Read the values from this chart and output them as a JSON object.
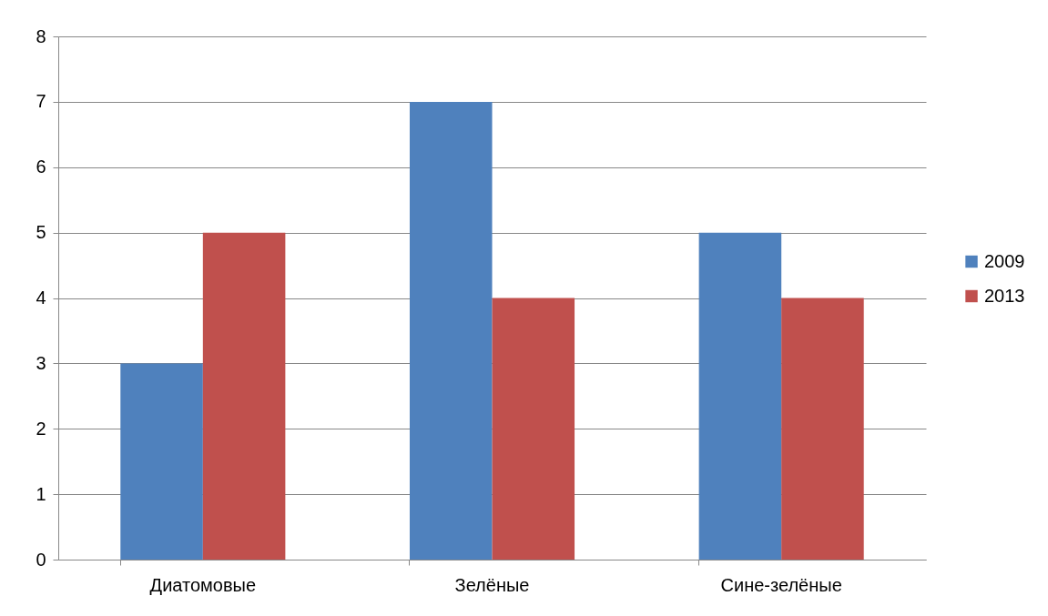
{
  "chart_data": {
    "type": "bar",
    "categories": [
      "Диатомовые",
      "Зелёные",
      "Сине-зелёные"
    ],
    "series": [
      {
        "name": "2009",
        "color": "#4f81bd",
        "values": [
          3,
          7,
          5
        ]
      },
      {
        "name": "2013",
        "color": "#c0504d",
        "values": [
          5,
          4,
          4
        ]
      }
    ],
    "ylim": [
      0,
      8
    ],
    "yticks": [
      0,
      1,
      2,
      3,
      4,
      5,
      6,
      7,
      8
    ],
    "grid": "y",
    "legend": "right"
  }
}
